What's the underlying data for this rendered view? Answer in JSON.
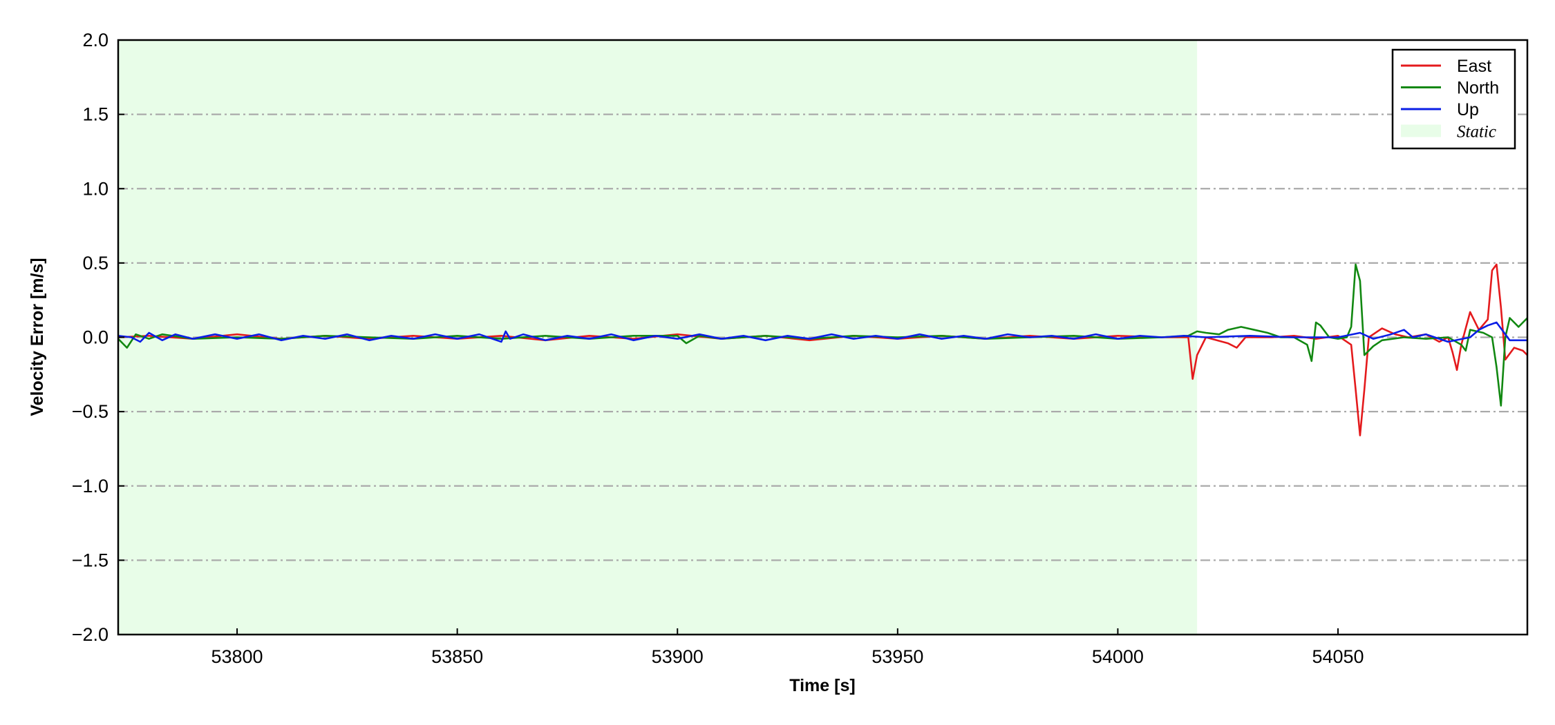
{
  "chart_data": {
    "type": "line",
    "title": "",
    "xlabel": "Time [s]",
    "ylabel": "Velocity Error [m/s]",
    "xlim": [
      53773,
      54093
    ],
    "ylim": [
      -2.0,
      2.0
    ],
    "x_ticks": [
      53800,
      53850,
      53900,
      53950,
      54000,
      54050
    ],
    "x_tick_labels": [
      "53800",
      "53850",
      "53900",
      "53950",
      "54000",
      "54050"
    ],
    "y_ticks": [
      2.0,
      1.5,
      1.0,
      0.5,
      0.0,
      -0.5,
      -1.0,
      -1.5,
      -2.0
    ],
    "y_tick_labels": [
      "2.0",
      "1.5",
      "1.0",
      "0.5",
      "0.0",
      "−0.5",
      "−1.0",
      "−1.5",
      "−2.0"
    ],
    "grid": {
      "axis": "y",
      "style": "dash-dot",
      "color": "#aaaaaa"
    },
    "legend_position": "top-right",
    "shaded_regions": [
      {
        "name": "Static",
        "x_start": 53773,
        "x_end": 54018,
        "color": "#e8fde8"
      }
    ],
    "series": [
      {
        "name": "East",
        "color": "#e41a1c",
        "points": [
          [
            53773,
            0.0
          ],
          [
            53780,
            0.01
          ],
          [
            53790,
            -0.01
          ],
          [
            53800,
            0.02
          ],
          [
            53810,
            -0.01
          ],
          [
            53820,
            0.01
          ],
          [
            53830,
            -0.01
          ],
          [
            53840,
            0.01
          ],
          [
            53850,
            -0.01
          ],
          [
            53860,
            0.01
          ],
          [
            53870,
            -0.02
          ],
          [
            53880,
            0.01
          ],
          [
            53890,
            -0.01
          ],
          [
            53900,
            0.02
          ],
          [
            53910,
            -0.01
          ],
          [
            53920,
            0.01
          ],
          [
            53930,
            -0.02
          ],
          [
            53940,
            0.01
          ],
          [
            53950,
            -0.01
          ],
          [
            53960,
            0.01
          ],
          [
            53970,
            -0.01
          ],
          [
            53980,
            0.01
          ],
          [
            53990,
            -0.01
          ],
          [
            54000,
            0.01
          ],
          [
            54010,
            0.0
          ],
          [
            54016,
            0.0
          ],
          [
            54017,
            -0.28
          ],
          [
            54018,
            -0.12
          ],
          [
            54020,
            0.0
          ],
          [
            54025,
            -0.04
          ],
          [
            54027,
            -0.07
          ],
          [
            54029,
            0.0
          ],
          [
            54035,
            0.0
          ],
          [
            54040,
            0.01
          ],
          [
            54045,
            -0.01
          ],
          [
            54050,
            0.01
          ],
          [
            54053,
            -0.05
          ],
          [
            54054,
            -0.35
          ],
          [
            54055,
            -0.66
          ],
          [
            54056,
            -0.35
          ],
          [
            54057,
            0.0
          ],
          [
            54060,
            0.06
          ],
          [
            54063,
            0.02
          ],
          [
            54066,
            0.0
          ],
          [
            54070,
            0.02
          ],
          [
            54073,
            -0.03
          ],
          [
            54075,
            0.0
          ],
          [
            54076,
            -0.1
          ],
          [
            54077,
            -0.22
          ],
          [
            54078,
            -0.05
          ],
          [
            54080,
            0.17
          ],
          [
            54082,
            0.05
          ],
          [
            54084,
            0.12
          ],
          [
            54085,
            0.45
          ],
          [
            54086,
            0.49
          ],
          [
            54087,
            0.2
          ],
          [
            54088,
            -0.15
          ],
          [
            54090,
            -0.07
          ],
          [
            54092,
            -0.09
          ],
          [
            54093,
            -0.12
          ]
        ]
      },
      {
        "name": "North",
        "color": "#118811",
        "points": [
          [
            53773,
            -0.01
          ],
          [
            53775,
            -0.07
          ],
          [
            53777,
            0.02
          ],
          [
            53780,
            -0.01
          ],
          [
            53783,
            0.02
          ],
          [
            53790,
            -0.01
          ],
          [
            53800,
            0.0
          ],
          [
            53810,
            -0.01
          ],
          [
            53820,
            0.01
          ],
          [
            53830,
            0.0
          ],
          [
            53840,
            -0.01
          ],
          [
            53850,
            0.01
          ],
          [
            53860,
            -0.01
          ],
          [
            53870,
            0.01
          ],
          [
            53880,
            -0.01
          ],
          [
            53890,
            0.01
          ],
          [
            53900,
            0.01
          ],
          [
            53902,
            -0.04
          ],
          [
            53905,
            0.01
          ],
          [
            53910,
            -0.01
          ],
          [
            53920,
            0.01
          ],
          [
            53930,
            -0.01
          ],
          [
            53940,
            0.01
          ],
          [
            53950,
            0.0
          ],
          [
            53960,
            0.01
          ],
          [
            53970,
            -0.01
          ],
          [
            53980,
            0.0
          ],
          [
            53990,
            0.01
          ],
          [
            54000,
            -0.01
          ],
          [
            54010,
            0.0
          ],
          [
            54016,
            0.01
          ],
          [
            54018,
            0.04
          ],
          [
            54020,
            0.03
          ],
          [
            54023,
            0.02
          ],
          [
            54025,
            0.05
          ],
          [
            54028,
            0.07
          ],
          [
            54031,
            0.05
          ],
          [
            54034,
            0.03
          ],
          [
            54037,
            0.0
          ],
          [
            54040,
            0.0
          ],
          [
            54043,
            -0.05
          ],
          [
            54044,
            -0.16
          ],
          [
            54045,
            0.1
          ],
          [
            54046,
            0.08
          ],
          [
            54048,
            0.0
          ],
          [
            54050,
            -0.01
          ],
          [
            54052,
            0.0
          ],
          [
            54053,
            0.07
          ],
          [
            54054,
            0.49
          ],
          [
            54055,
            0.38
          ],
          [
            54056,
            -0.12
          ],
          [
            54058,
            -0.06
          ],
          [
            54060,
            -0.02
          ],
          [
            54065,
            0.0
          ],
          [
            54070,
            -0.01
          ],
          [
            54075,
            0.0
          ],
          [
            54078,
            -0.05
          ],
          [
            54079,
            -0.09
          ],
          [
            54080,
            0.05
          ],
          [
            54083,
            0.03
          ],
          [
            54085,
            0.0
          ],
          [
            54086,
            -0.2
          ],
          [
            54087,
            -0.46
          ],
          [
            54088,
            0.0
          ],
          [
            54089,
            0.13
          ],
          [
            54091,
            0.07
          ],
          [
            54093,
            0.13
          ]
        ]
      },
      {
        "name": "Up",
        "color": "#0a1ee6",
        "points": [
          [
            53773,
            0.01
          ],
          [
            53776,
            0.0
          ],
          [
            53778,
            -0.03
          ],
          [
            53780,
            0.03
          ],
          [
            53783,
            -0.02
          ],
          [
            53786,
            0.02
          ],
          [
            53790,
            -0.01
          ],
          [
            53795,
            0.02
          ],
          [
            53800,
            -0.01
          ],
          [
            53805,
            0.02
          ],
          [
            53810,
            -0.02
          ],
          [
            53815,
            0.01
          ],
          [
            53820,
            -0.01
          ],
          [
            53825,
            0.02
          ],
          [
            53830,
            -0.02
          ],
          [
            53835,
            0.01
          ],
          [
            53840,
            -0.01
          ],
          [
            53845,
            0.02
          ],
          [
            53850,
            -0.01
          ],
          [
            53855,
            0.02
          ],
          [
            53860,
            -0.03
          ],
          [
            53861,
            0.04
          ],
          [
            53862,
            -0.01
          ],
          [
            53865,
            0.02
          ],
          [
            53870,
            -0.02
          ],
          [
            53875,
            0.01
          ],
          [
            53880,
            -0.01
          ],
          [
            53885,
            0.02
          ],
          [
            53890,
            -0.02
          ],
          [
            53895,
            0.01
          ],
          [
            53900,
            -0.01
          ],
          [
            53905,
            0.02
          ],
          [
            53910,
            -0.01
          ],
          [
            53915,
            0.01
          ],
          [
            53920,
            -0.02
          ],
          [
            53925,
            0.01
          ],
          [
            53930,
            -0.01
          ],
          [
            53935,
            0.02
          ],
          [
            53940,
            -0.01
          ],
          [
            53945,
            0.01
          ],
          [
            53950,
            -0.01
          ],
          [
            53955,
            0.02
          ],
          [
            53960,
            -0.01
          ],
          [
            53965,
            0.01
          ],
          [
            53970,
            -0.01
          ],
          [
            53975,
            0.02
          ],
          [
            53980,
            0.0
          ],
          [
            53985,
            0.01
          ],
          [
            53990,
            -0.01
          ],
          [
            53995,
            0.02
          ],
          [
            54000,
            -0.01
          ],
          [
            54005,
            0.01
          ],
          [
            54010,
            0.0
          ],
          [
            54015,
            0.01
          ],
          [
            54020,
            0.0
          ],
          [
            54030,
            0.01
          ],
          [
            54040,
            0.0
          ],
          [
            54050,
            0.0
          ],
          [
            54055,
            0.03
          ],
          [
            54058,
            -0.01
          ],
          [
            54062,
            0.02
          ],
          [
            54065,
            0.05
          ],
          [
            54067,
            0.0
          ],
          [
            54070,
            0.02
          ],
          [
            54075,
            -0.03
          ],
          [
            54080,
            0.0
          ],
          [
            54082,
            0.05
          ],
          [
            54084,
            0.08
          ],
          [
            54086,
            0.1
          ],
          [
            54087,
            0.06
          ],
          [
            54089,
            -0.02
          ],
          [
            54091,
            -0.02
          ],
          [
            54093,
            -0.02
          ]
        ]
      }
    ]
  }
}
